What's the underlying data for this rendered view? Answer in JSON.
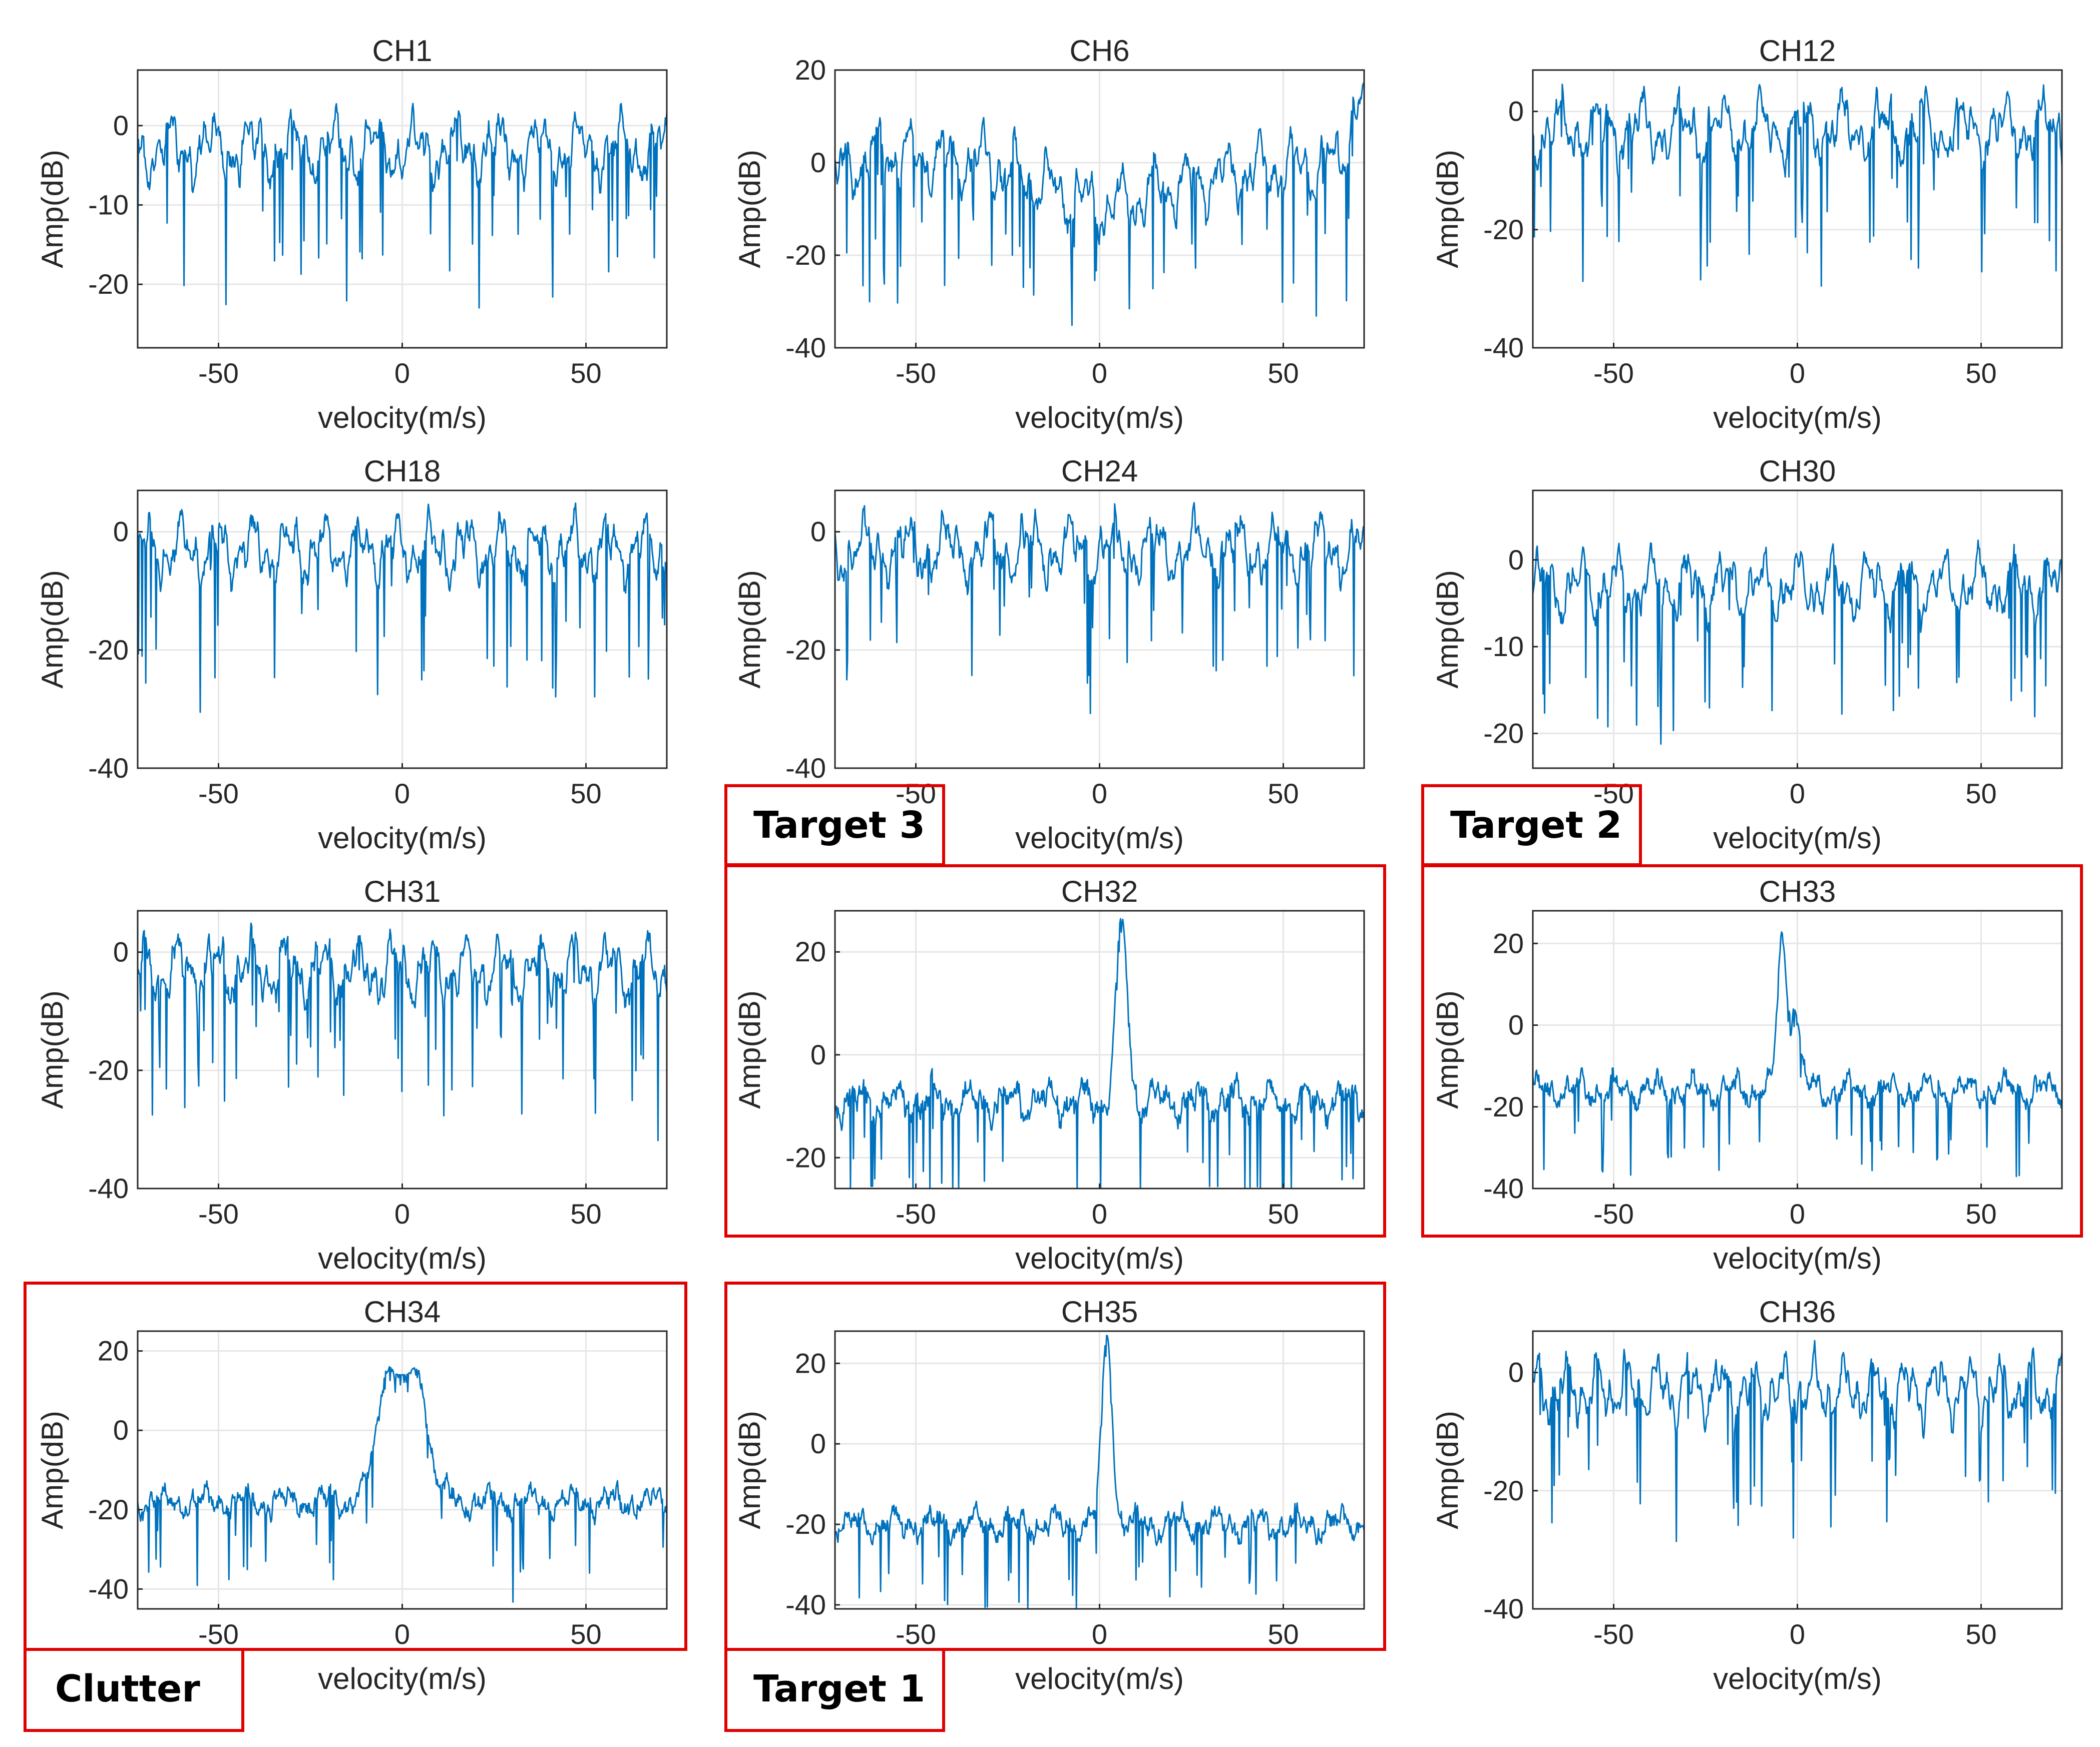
{
  "colors": {
    "trace": "#0072BD",
    "highlight": "#e00000",
    "grid": "#e6e6e6",
    "axis": "#262626"
  },
  "chart_data": [
    {
      "type": "line",
      "title": "CH1",
      "xlabel": "velocity(m/s)",
      "ylabel": "Amp(dB)",
      "xlim": [
        -72,
        72
      ],
      "ylim": [
        -28,
        7
      ],
      "xticks": [
        -50,
        0,
        50
      ],
      "yticks": [
        -20,
        -10,
        0
      ],
      "grid": true,
      "style": "noise",
      "seed": 11,
      "peaks": []
    },
    {
      "type": "line",
      "title": "CH6",
      "xlabel": "velocity(m/s)",
      "ylabel": "Amp(dB)",
      "xlim": [
        -72,
        72
      ],
      "ylim": [
        -40,
        20
      ],
      "xticks": [
        -50,
        0,
        50
      ],
      "yticks": [
        -40,
        -20,
        0,
        20
      ],
      "grid": true,
      "style": "noise",
      "seed": 6,
      "trend": [
        [
          -72,
          -3
        ],
        [
          -60,
          2
        ],
        [
          -30,
          0
        ],
        [
          0,
          -10
        ],
        [
          20,
          -5
        ],
        [
          40,
          -2
        ],
        [
          65,
          0
        ],
        [
          70,
          12
        ]
      ],
      "peaks": []
    },
    {
      "type": "line",
      "title": "CH12",
      "xlabel": "velocity(m/s)",
      "ylabel": "Amp(dB)",
      "xlim": [
        -72,
        72
      ],
      "ylim": [
        -40,
        7
      ],
      "xticks": [
        -50,
        0,
        50
      ],
      "yticks": [
        -40,
        -20,
        0
      ],
      "grid": true,
      "style": "noise",
      "seed": 12,
      "peaks": []
    },
    {
      "type": "line",
      "title": "CH18",
      "xlabel": "velocity(m/s)",
      "ylabel": "Amp(dB)",
      "xlim": [
        -72,
        72
      ],
      "ylim": [
        -40,
        7
      ],
      "xticks": [
        -50,
        0,
        50
      ],
      "yticks": [
        -40,
        -20,
        0
      ],
      "grid": true,
      "style": "noise",
      "seed": 18,
      "peaks": []
    },
    {
      "type": "line",
      "title": "CH24",
      "xlabel": "velocity(m/s)",
      "ylabel": "Amp(dB)",
      "xlim": [
        -72,
        72
      ],
      "ylim": [
        -40,
        7
      ],
      "xticks": [
        -50,
        0,
        50
      ],
      "yticks": [
        -40,
        -20,
        0
      ],
      "grid": true,
      "style": "noise",
      "seed": 24,
      "peaks": []
    },
    {
      "type": "line",
      "title": "CH30",
      "xlabel": "velocity(m/s)",
      "ylabel": "Amp(dB)",
      "xlim": [
        -72,
        72
      ],
      "ylim": [
        -24,
        8
      ],
      "xticks": [
        -50,
        0,
        50
      ],
      "yticks": [
        -20,
        -10,
        0
      ],
      "grid": true,
      "style": "noise",
      "seed": 30,
      "peaks": []
    },
    {
      "type": "line",
      "title": "CH31",
      "xlabel": "velocity(m/s)",
      "ylabel": "Amp(dB)",
      "xlim": [
        -72,
        72
      ],
      "ylim": [
        -40,
        7
      ],
      "xticks": [
        -50,
        0,
        50
      ],
      "yticks": [
        -40,
        -20,
        0
      ],
      "grid": true,
      "style": "noise",
      "seed": 31,
      "peaks": []
    },
    {
      "type": "line",
      "title": "CH32",
      "xlabel": "velocity(m/s)",
      "ylabel": "Amp(dB)",
      "xlim": [
        -72,
        72
      ],
      "ylim": [
        -26,
        28
      ],
      "xticks": [
        -50,
        0,
        50
      ],
      "yticks": [
        -20,
        0,
        20
      ],
      "grid": true,
      "style": "floor",
      "seed": 32,
      "floor": -9,
      "peaks": [
        [
          6,
          27,
          2.2
        ]
      ]
    },
    {
      "type": "line",
      "title": "CH33",
      "xlabel": "velocity(m/s)",
      "ylabel": "Amp(dB)",
      "xlim": [
        -72,
        72
      ],
      "ylim": [
        -40,
        28
      ],
      "xticks": [
        -50,
        0,
        50
      ],
      "yticks": [
        -40,
        -20,
        0,
        20
      ],
      "grid": true,
      "style": "floor",
      "seed": 33,
      "floor": -16,
      "peaks": [
        [
          -4,
          28,
          1.8
        ],
        [
          -1,
          4,
          2.5
        ]
      ]
    },
    {
      "type": "line",
      "title": "CH34",
      "xlabel": "velocity(m/s)",
      "ylabel": "Amp(dB)",
      "xlim": [
        -72,
        72
      ],
      "ylim": [
        -45,
        25
      ],
      "xticks": [
        -50,
        0,
        50
      ],
      "yticks": [
        -40,
        -20,
        0,
        20
      ],
      "grid": true,
      "style": "floor",
      "seed": 34,
      "floor": -18,
      "peaks": [
        [
          -3,
          24,
          3.5
        ],
        [
          3,
          24,
          3.5
        ],
        [
          0,
          14,
          7
        ]
      ]
    },
    {
      "type": "line",
      "title": "CH35",
      "xlabel": "velocity(m/s)",
      "ylabel": "Amp(dB)",
      "xlim": [
        -72,
        72
      ],
      "ylim": [
        -41,
        28
      ],
      "xticks": [
        -50,
        0,
        50
      ],
      "yticks": [
        -40,
        -20,
        0,
        20
      ],
      "grid": true,
      "style": "floor",
      "seed": 35,
      "floor": -20,
      "peaks": [
        [
          2,
          27,
          2
        ]
      ]
    },
    {
      "type": "line",
      "title": "CH36",
      "xlabel": "velocity(m/s)",
      "ylabel": "Amp(dB)",
      "xlim": [
        -72,
        72
      ],
      "ylim": [
        -40,
        7
      ],
      "xticks": [
        -50,
        0,
        50
      ],
      "yticks": [
        -40,
        -20,
        0
      ],
      "grid": true,
      "style": "noise",
      "seed": 36,
      "peaks": []
    }
  ],
  "annotations": {
    "target3": "Target 3",
    "target2": "Target 2",
    "clutter": "Clutter",
    "target1": "Target 1"
  }
}
